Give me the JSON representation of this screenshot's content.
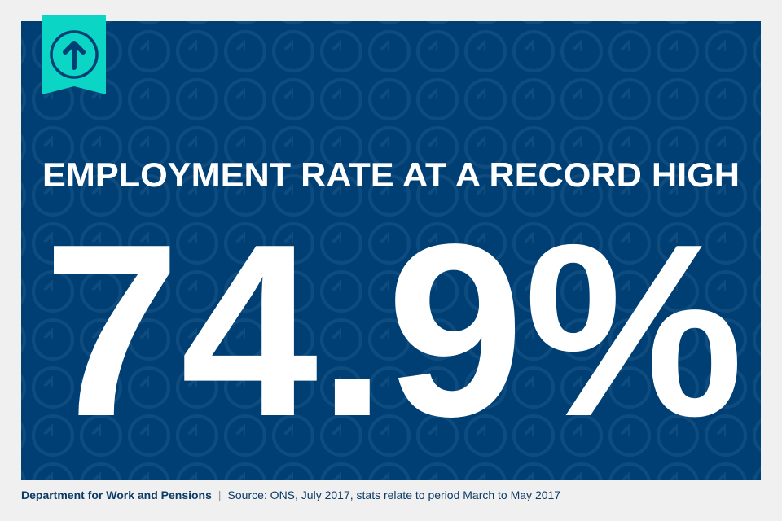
{
  "colors": {
    "background": "#f0f0f0",
    "panel": "#003f74",
    "accent": "#0bd5c4",
    "text": "#ffffff",
    "footer_text": "#0b3a66"
  },
  "badge": {
    "icon": "arrow-up-circle-icon"
  },
  "pattern": {
    "icon": "arrow-up-circle-icon"
  },
  "headline": "EMPLOYMENT RATE AT A RECORD HIGH",
  "stat": "74.9%",
  "footer": {
    "organisation": "Department for Work and Pensions",
    "separator": "|",
    "source": "Source: ONS, July 2017, stats relate to period March to May 2017"
  }
}
